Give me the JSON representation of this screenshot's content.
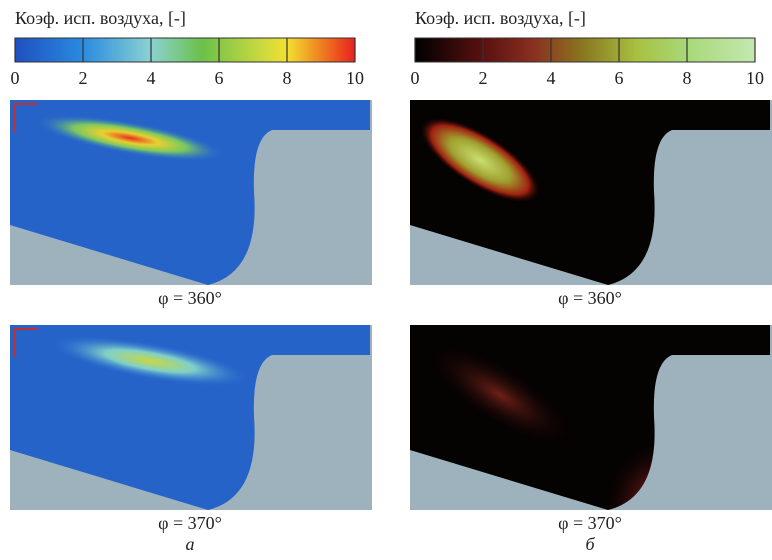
{
  "columns": [
    {
      "colorbar_title": "Коэф. исп. воздуха, [-]",
      "colorbar_lim": [
        0,
        10
      ],
      "colorbar_ticks": [
        0,
        2,
        4,
        6,
        8,
        10
      ],
      "panels": [
        {
          "caption": "φ = 360°"
        },
        {
          "caption": "φ = 370°"
        }
      ],
      "label": "а"
    },
    {
      "colorbar_title": "Коэф. исп. воздуха, [-]",
      "colorbar_lim": [
        0,
        10
      ],
      "colorbar_ticks": [
        0,
        2,
        4,
        6,
        8,
        10
      ],
      "panels": [
        {
          "caption": "φ = 360°"
        },
        {
          "caption": "φ = 370°"
        }
      ],
      "label": "б"
    }
  ]
}
